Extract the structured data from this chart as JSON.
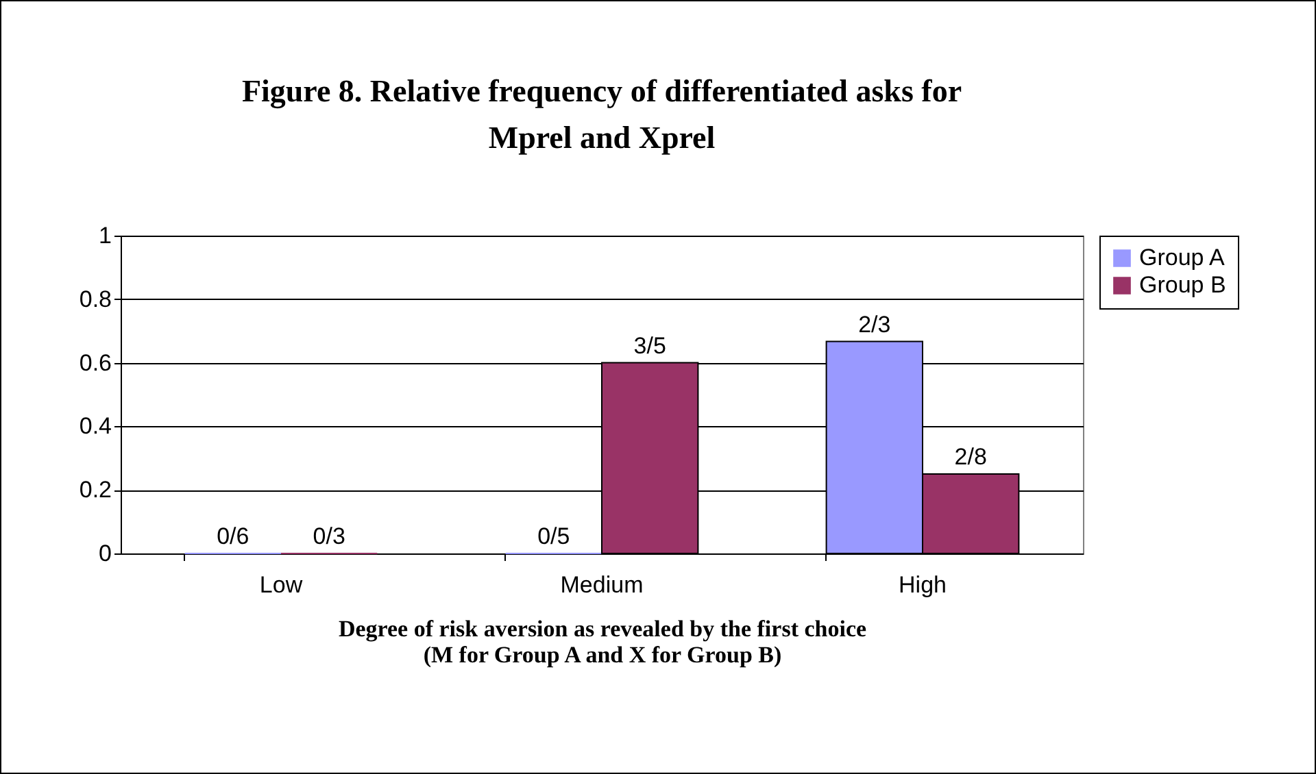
{
  "chart_data": {
    "type": "bar",
    "title": "Figure 8. Relative frequency of differentiated asks for Mprel and Xprel",
    "xlabel": "Degree of risk aversion as revealed by the first choice (M for Group A and X for Group B)",
    "categories": [
      "Low",
      "Medium",
      "High"
    ],
    "series": [
      {
        "name": "Group A",
        "color": "#9999ff",
        "values": [
          0,
          0,
          0.667
        ],
        "value_labels": [
          "0/6",
          "0/5",
          "2/3"
        ]
      },
      {
        "name": "Group B",
        "color": "#993366",
        "values": [
          0,
          0.6,
          0.25
        ],
        "value_labels": [
          "0/3",
          "3/5",
          "2/8"
        ]
      }
    ],
    "ylim": [
      0,
      1
    ],
    "yticks": [
      0,
      0.2,
      0.4,
      0.6,
      0.8,
      1
    ],
    "grid": "y",
    "legend": "right"
  }
}
